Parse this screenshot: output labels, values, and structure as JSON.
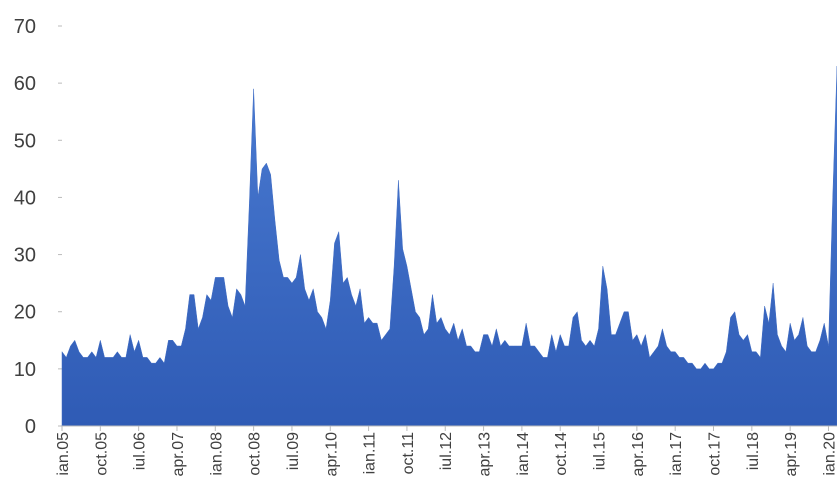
{
  "chart_data": {
    "type": "area",
    "categories": [
      "ian.05",
      null,
      null,
      null,
      null,
      null,
      null,
      null,
      null,
      "oct.05",
      null,
      null,
      null,
      null,
      null,
      null,
      null,
      null,
      "iul.06",
      null,
      null,
      null,
      null,
      null,
      null,
      null,
      null,
      "apr.07",
      null,
      null,
      null,
      null,
      null,
      null,
      null,
      null,
      "ian.08",
      null,
      null,
      null,
      null,
      null,
      null,
      null,
      null,
      "oct.08",
      null,
      null,
      null,
      null,
      null,
      null,
      null,
      null,
      "iul.09",
      null,
      null,
      null,
      null,
      null,
      null,
      null,
      null,
      "apr.10",
      null,
      null,
      null,
      null,
      null,
      null,
      null,
      null,
      "ian.11",
      null,
      null,
      null,
      null,
      null,
      null,
      null,
      null,
      "oct.11",
      null,
      null,
      null,
      null,
      null,
      null,
      null,
      null,
      "iul.12",
      null,
      null,
      null,
      null,
      null,
      null,
      null,
      null,
      "apr.13",
      null,
      null,
      null,
      null,
      null,
      null,
      null,
      null,
      "ian.14",
      null,
      null,
      null,
      null,
      null,
      null,
      null,
      null,
      "oct.14",
      null,
      null,
      null,
      null,
      null,
      null,
      null,
      null,
      "iul.15",
      null,
      null,
      null,
      null,
      null,
      null,
      null,
      null,
      "apr.16",
      null,
      null,
      null,
      null,
      null,
      null,
      null,
      null,
      "ian.17",
      null,
      null,
      null,
      null,
      null,
      null,
      null,
      null,
      "oct.17",
      null,
      null,
      null,
      null,
      null,
      null,
      null,
      null,
      "iul.18",
      null,
      null,
      null,
      null,
      null,
      null,
      null,
      null,
      "apr.19",
      null,
      null,
      null,
      null,
      null,
      null,
      null,
      null,
      "ian.20",
      null,
      null
    ],
    "values": [
      13,
      12,
      14,
      15,
      13,
      12,
      12,
      13,
      12,
      15,
      12,
      12,
      12,
      13,
      12,
      12,
      16,
      13,
      15,
      12,
      12,
      11,
      11,
      12,
      11,
      15,
      15,
      14,
      14,
      17,
      23,
      23,
      17,
      19,
      23,
      22,
      26,
      26,
      26,
      21,
      19,
      24,
      23,
      21,
      39,
      59,
      40,
      45,
      46,
      44,
      36,
      29,
      26,
      26,
      25,
      26,
      30,
      24,
      22,
      24,
      20,
      19,
      17,
      22,
      32,
      34,
      25,
      26,
      23,
      21,
      24,
      18,
      19,
      18,
      18,
      15,
      16,
      17,
      28,
      43,
      31,
      28,
      24,
      20,
      19,
      16,
      17,
      23,
      18,
      19,
      17,
      16,
      18,
      15,
      17,
      14,
      14,
      13,
      13,
      16,
      16,
      14,
      17,
      14,
      15,
      14,
      14,
      14,
      14,
      18,
      14,
      14,
      13,
      12,
      12,
      16,
      13,
      16,
      14,
      14,
      19,
      20,
      15,
      14,
      15,
      14,
      17,
      28,
      24,
      16,
      16,
      18,
      20,
      20,
      15,
      16,
      14,
      16,
      12,
      13,
      14,
      17,
      14,
      13,
      13,
      12,
      12,
      11,
      11,
      10,
      10,
      11,
      10,
      10,
      11,
      11,
      13,
      19,
      20,
      16,
      15,
      16,
      13,
      13,
      12,
      21,
      18,
      25,
      16,
      14,
      13,
      18,
      15,
      16,
      19,
      14,
      13,
      13,
      15,
      18,
      14,
      40,
      63
    ],
    "color": "#3f6cc4",
    "ylim": [
      0,
      70
    ],
    "yticks": [
      0,
      10,
      20,
      30,
      40,
      50,
      60,
      70
    ]
  }
}
